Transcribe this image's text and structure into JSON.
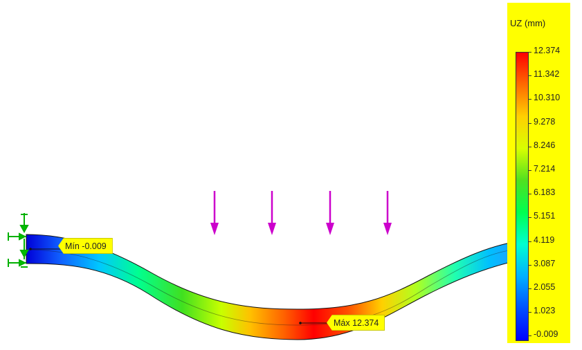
{
  "legend": {
    "title": "UZ (mm)",
    "ticks": [
      "12.374",
      "11.342",
      "10.310",
      "9.278",
      "8.246",
      "7.214",
      "6.183",
      "5.151",
      "4.119",
      "3.087",
      "2.055",
      "1.023",
      "-0.009"
    ],
    "gradient_colors": [
      "#ff0000",
      "#ff6a00",
      "#ffd000",
      "#d8ff00",
      "#50e020",
      "#00ff50",
      "#00ffd0",
      "#00b0ff",
      "#0050ff",
      "#0000ff"
    ]
  },
  "probes": {
    "min_label": "Mín -0.009",
    "max_label": "Máx 12.374"
  },
  "loads": {
    "arrow_count": 4,
    "color": "#cc00cc"
  },
  "fixture_color": "#00c000",
  "plot": {
    "result": "UZ",
    "unit": "mm",
    "min": -0.009,
    "max": 12.374
  }
}
